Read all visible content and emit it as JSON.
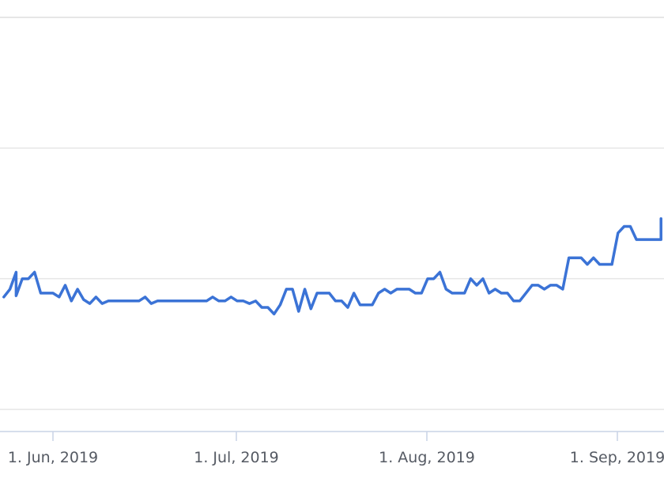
{
  "chart_data": {
    "type": "line",
    "title": "",
    "xlabel": "",
    "ylabel": "",
    "grid": true,
    "line_color": "#3b73d6",
    "grid_color": "#e6e6e6",
    "axis_color": "#c8d3e6",
    "x_ticks": [
      {
        "date": "2019-06-01",
        "label": "1. Jun, 2019"
      },
      {
        "date": "2019-07-01",
        "label": "1. Jul, 2019"
      },
      {
        "date": "2019-08-01",
        "label": "1. Aug, 2019"
      },
      {
        "date": "2019-09-01",
        "label": "1. Sep, 2019"
      }
    ],
    "xlim": [
      "2019-05-24",
      "2019-09-08"
    ],
    "ylim": [
      0,
      3
    ],
    "y_gridlines": [
      0,
      1,
      2,
      3
    ],
    "series": [
      {
        "values": [
          [
            "2019-05-24",
            0.86
          ],
          [
            "2019-05-25",
            0.92
          ],
          [
            "2019-05-26",
            1.05
          ],
          [
            "2019-05-26",
            0.87
          ],
          [
            "2019-05-27",
            1.0
          ],
          [
            "2019-05-28",
            1.0
          ],
          [
            "2019-05-29",
            1.05
          ],
          [
            "2019-05-30",
            0.89
          ],
          [
            "2019-05-31",
            0.89
          ],
          [
            "2019-06-01",
            0.89
          ],
          [
            "2019-06-02",
            0.86
          ],
          [
            "2019-06-03",
            0.95
          ],
          [
            "2019-06-04",
            0.83
          ],
          [
            "2019-06-05",
            0.92
          ],
          [
            "2019-06-06",
            0.84
          ],
          [
            "2019-06-07",
            0.81
          ],
          [
            "2019-06-08",
            0.86
          ],
          [
            "2019-06-09",
            0.81
          ],
          [
            "2019-06-10",
            0.83
          ],
          [
            "2019-06-11",
            0.83
          ],
          [
            "2019-06-12",
            0.83
          ],
          [
            "2019-06-13",
            0.83
          ],
          [
            "2019-06-14",
            0.83
          ],
          [
            "2019-06-15",
            0.83
          ],
          [
            "2019-06-16",
            0.86
          ],
          [
            "2019-06-17",
            0.81
          ],
          [
            "2019-06-18",
            0.83
          ],
          [
            "2019-06-19",
            0.83
          ],
          [
            "2019-06-20",
            0.83
          ],
          [
            "2019-06-21",
            0.83
          ],
          [
            "2019-06-22",
            0.83
          ],
          [
            "2019-06-23",
            0.83
          ],
          [
            "2019-06-24",
            0.83
          ],
          [
            "2019-06-25",
            0.83
          ],
          [
            "2019-06-26",
            0.83
          ],
          [
            "2019-06-27",
            0.86
          ],
          [
            "2019-06-28",
            0.83
          ],
          [
            "2019-06-29",
            0.83
          ],
          [
            "2019-06-30",
            0.86
          ],
          [
            "2019-07-01",
            0.83
          ],
          [
            "2019-07-02",
            0.83
          ],
          [
            "2019-07-03",
            0.81
          ],
          [
            "2019-07-04",
            0.83
          ],
          [
            "2019-07-05",
            0.78
          ],
          [
            "2019-07-06",
            0.78
          ],
          [
            "2019-07-07",
            0.73
          ],
          [
            "2019-07-08",
            0.8
          ],
          [
            "2019-07-09",
            0.92
          ],
          [
            "2019-07-10",
            0.92
          ],
          [
            "2019-07-11",
            0.75
          ],
          [
            "2019-07-12",
            0.92
          ],
          [
            "2019-07-13",
            0.77
          ],
          [
            "2019-07-14",
            0.89
          ],
          [
            "2019-07-15",
            0.89
          ],
          [
            "2019-07-16",
            0.89
          ],
          [
            "2019-07-17",
            0.83
          ],
          [
            "2019-07-18",
            0.83
          ],
          [
            "2019-07-19",
            0.78
          ],
          [
            "2019-07-20",
            0.89
          ],
          [
            "2019-07-21",
            0.8
          ],
          [
            "2019-07-22",
            0.8
          ],
          [
            "2019-07-23",
            0.8
          ],
          [
            "2019-07-24",
            0.89
          ],
          [
            "2019-07-25",
            0.92
          ],
          [
            "2019-07-26",
            0.89
          ],
          [
            "2019-07-27",
            0.92
          ],
          [
            "2019-07-28",
            0.92
          ],
          [
            "2019-07-29",
            0.92
          ],
          [
            "2019-07-30",
            0.89
          ],
          [
            "2019-07-31",
            0.89
          ],
          [
            "2019-08-01",
            1.0
          ],
          [
            "2019-08-02",
            1.0
          ],
          [
            "2019-08-03",
            1.05
          ],
          [
            "2019-08-04",
            0.92
          ],
          [
            "2019-08-05",
            0.89
          ],
          [
            "2019-08-06",
            0.89
          ],
          [
            "2019-08-07",
            0.89
          ],
          [
            "2019-08-08",
            1.0
          ],
          [
            "2019-08-09",
            0.95
          ],
          [
            "2019-08-10",
            1.0
          ],
          [
            "2019-08-11",
            0.89
          ],
          [
            "2019-08-12",
            0.92
          ],
          [
            "2019-08-13",
            0.89
          ],
          [
            "2019-08-14",
            0.89
          ],
          [
            "2019-08-15",
            0.83
          ],
          [
            "2019-08-16",
            0.83
          ],
          [
            "2019-08-17",
            0.89
          ],
          [
            "2019-08-18",
            0.95
          ],
          [
            "2019-08-19",
            0.95
          ],
          [
            "2019-08-20",
            0.92
          ],
          [
            "2019-08-21",
            0.95
          ],
          [
            "2019-08-22",
            0.95
          ],
          [
            "2019-08-23",
            0.92
          ],
          [
            "2019-08-24",
            1.16
          ],
          [
            "2019-08-25",
            1.16
          ],
          [
            "2019-08-26",
            1.16
          ],
          [
            "2019-08-27",
            1.11
          ],
          [
            "2019-08-28",
            1.16
          ],
          [
            "2019-08-29",
            1.11
          ],
          [
            "2019-08-30",
            1.11
          ],
          [
            "2019-08-31",
            1.11
          ],
          [
            "2019-09-01",
            1.35
          ],
          [
            "2019-09-02",
            1.4
          ],
          [
            "2019-09-03",
            1.4
          ],
          [
            "2019-09-04",
            1.3
          ],
          [
            "2019-09-05",
            1.3
          ],
          [
            "2019-09-06",
            1.3
          ],
          [
            "2019-09-07",
            1.3
          ],
          [
            "2019-09-08",
            1.3
          ],
          [
            "2019-09-08",
            1.46
          ]
        ]
      }
    ]
  }
}
